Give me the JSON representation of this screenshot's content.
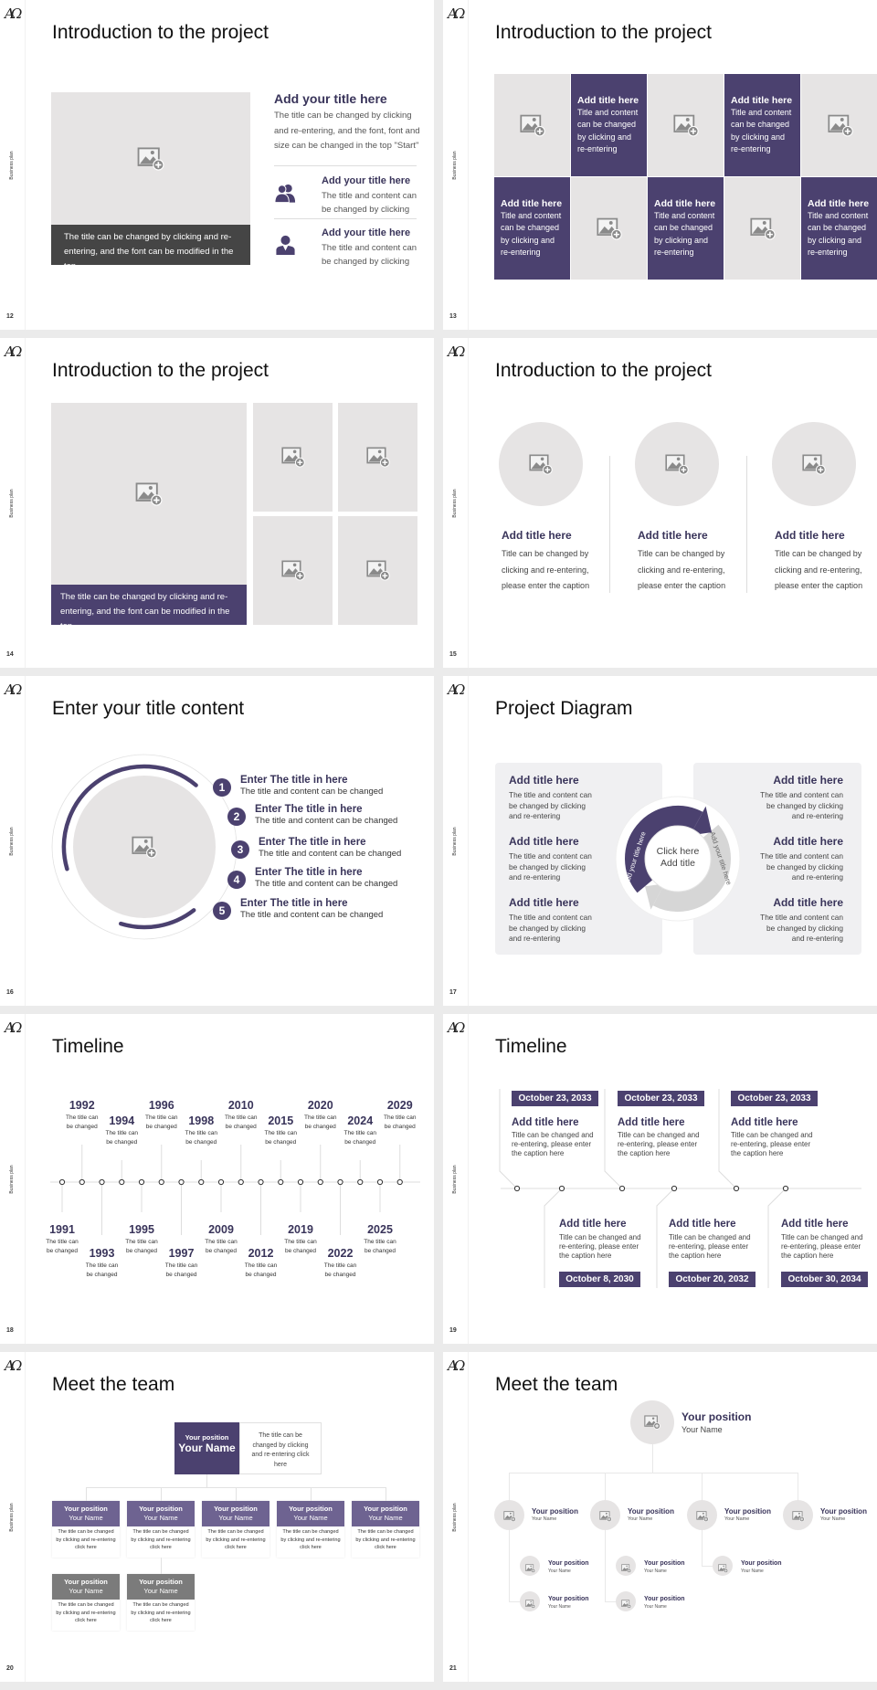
{
  "deck": {
    "logo": "AΩ",
    "side_label": "Business plan",
    "colors": {
      "purple": "#4b416f",
      "purple_light": "#6e6391",
      "placeholder": "#e6e4e4",
      "heading": "#39345a",
      "gray_header": "#7b7b7b",
      "caption_dark": "#454545",
      "panel": "#f0f0f2",
      "ring_gray": "#d6d6d6"
    }
  },
  "s12": {
    "page": "12",
    "title": "Introduction to the project",
    "image_caption": "The title can be changed by clicking and re-entering, and the font can be modified in the top",
    "main_title": "Add your title here",
    "main_text": "The title can be changed by clicking and re-entering, and the font, font and size can be changed in the top \"Start\"",
    "items": [
      {
        "icon": "users-icon",
        "title": "Add your title here",
        "text": "The title and content can be changed by clicking"
      },
      {
        "icon": "user-icon",
        "title": "Add your title here",
        "text": "The title and content can be changed by clicking"
      }
    ]
  },
  "s13": {
    "page": "13",
    "title": "Introduction to the project",
    "cells": [
      {
        "type": "image"
      },
      {
        "type": "text",
        "title": "Add title here",
        "text": "Title and content can be changed by clicking and re-entering"
      },
      {
        "type": "image"
      },
      {
        "type": "text",
        "title": "Add title here",
        "text": "Title and content can be changed by clicking and re-entering"
      },
      {
        "type": "image"
      },
      {
        "type": "text",
        "title": "Add title here",
        "text": "Title and content can be changed by clicking and re-entering"
      },
      {
        "type": "image"
      },
      {
        "type": "text",
        "title": "Add title here",
        "text": "Title and content can be changed by clicking and re-entering"
      },
      {
        "type": "image"
      },
      {
        "type": "text",
        "title": "Add title here",
        "text": "Title and content can be changed by clicking and re-entering"
      }
    ]
  },
  "s14": {
    "page": "14",
    "title": "Introduction to the project",
    "image_caption": "The title can be changed by clicking and re-entering, and the font can be modified in the top"
  },
  "s15": {
    "page": "15",
    "title": "Introduction to the project",
    "items": [
      {
        "title": "Add title here",
        "text": "Title can be changed by clicking and re-entering, please enter the caption"
      },
      {
        "title": "Add title here",
        "text": "Title can be changed by clicking and re-entering, please enter the caption"
      },
      {
        "title": "Add title here",
        "text": "Title can be changed by clicking and re-entering, please enter the caption"
      }
    ]
  },
  "s16": {
    "page": "16",
    "title": "Enter your title content",
    "items": [
      {
        "num": "1",
        "title": "Enter The title in here",
        "text": "The title and content can be changed"
      },
      {
        "num": "2",
        "title": "Enter The title in here",
        "text": "The title and content can be changed"
      },
      {
        "num": "3",
        "title": "Enter The title in here",
        "text": "The title and content can be changed"
      },
      {
        "num": "4",
        "title": "Enter The title in here",
        "text": "The title and content can be changed"
      },
      {
        "num": "5",
        "title": "Enter The title in here",
        "text": "The title and content can be changed"
      }
    ]
  },
  "s17": {
    "page": "17",
    "title": "Project Diagram",
    "center_line1": "Click here",
    "center_line2": "Add title",
    "arrow_left_label": "Add your title here",
    "arrow_right_label": "Add your title here",
    "left": [
      {
        "title": "Add title here",
        "text": "The title and content can be changed by clicking and re-entering"
      },
      {
        "title": "Add title here",
        "text": "The title and content can be changed by clicking and re-entering"
      },
      {
        "title": "Add title here",
        "text": "The title and content can be changed by clicking and re-entering"
      }
    ],
    "right": [
      {
        "title": "Add title here",
        "text": "The title and content can be changed by clicking and re-entering"
      },
      {
        "title": "Add title here",
        "text": "The title and content can be changed by clicking and re-entering"
      },
      {
        "title": "Add title here",
        "text": "The title and content can be changed by clicking and re-entering"
      }
    ]
  },
  "s18": {
    "page": "18",
    "title": "Timeline",
    "events": [
      {
        "year": "1991",
        "text": "The title can be changed"
      },
      {
        "year": "1992",
        "text": "The title can be changed"
      },
      {
        "year": "1993",
        "text": "The title can be changed"
      },
      {
        "year": "1994",
        "text": "The title can be changed"
      },
      {
        "year": "1995",
        "text": "The title can be changed"
      },
      {
        "year": "1996",
        "text": "The title can be changed"
      },
      {
        "year": "1997",
        "text": "The title can be changed"
      },
      {
        "year": "1998",
        "text": "The title can be changed"
      },
      {
        "year": "2009",
        "text": "The title can be changed"
      },
      {
        "year": "2010",
        "text": "The title can be changed"
      },
      {
        "year": "2012",
        "text": "The title can be changed"
      },
      {
        "year": "2015",
        "text": "The title can be changed"
      },
      {
        "year": "2019",
        "text": "The title can be changed"
      },
      {
        "year": "2020",
        "text": "The title can be changed"
      },
      {
        "year": "2022",
        "text": "The title can be changed"
      },
      {
        "year": "2024",
        "text": "The title can be changed"
      },
      {
        "year": "2025",
        "text": "The title can be changed"
      },
      {
        "year": "2029",
        "text": "The title can be changed"
      }
    ]
  },
  "s19": {
    "page": "19",
    "title": "Timeline",
    "events": [
      {
        "date": "October 23, 2033",
        "title": "Add title here",
        "text": "Title can be changed and re-entering, please enter the caption here"
      },
      {
        "date": "October 8, 2030",
        "title": "Add title here",
        "text": "Title can be changed and re-entering, please enter the caption here"
      },
      {
        "date": "October 23, 2033",
        "title": "Add title here",
        "text": "Title can be changed and re-entering, please enter the caption here"
      },
      {
        "date": "October 20, 2032",
        "title": "Add title here",
        "text": "Title can be changed and re-entering, please enter the caption here"
      },
      {
        "date": "October 23, 2033",
        "title": "Add title here",
        "text": "Title can be changed and re-entering, please enter the caption here"
      },
      {
        "date": "October 30, 2034",
        "title": "Add title here",
        "text": "Title can be changed and re-entering, please enter the caption here"
      }
    ]
  },
  "s20": {
    "page": "20",
    "title": "Meet the team",
    "lead": {
      "position": "Your position",
      "name": "Your Name",
      "text": "The title can be changed by clicking and re-entering click here"
    },
    "members": [
      {
        "position": "Your position",
        "name": "Your Name",
        "text": "The title can be changed by clicking and re-entering click here"
      },
      {
        "position": "Your position",
        "name": "Your Name",
        "text": "The title can be changed by clicking and re-entering click here"
      },
      {
        "position": "Your position",
        "name": "Your Name",
        "text": "The title can be changed by clicking and re-entering click here"
      },
      {
        "position": "Your position",
        "name": "Your Name",
        "text": "The title can be changed by clicking and re-entering click here"
      },
      {
        "position": "Your position",
        "name": "Your Name",
        "text": "The title can be changed by clicking and re-entering click here"
      },
      {
        "position": "Your position",
        "name": "Your Name",
        "text": "The title can be changed by clicking and re-entering click here"
      },
      {
        "position": "Your position",
        "name": "Your Name",
        "text": "The title can be changed by clicking and re-entering click here"
      }
    ]
  },
  "s21": {
    "page": "21",
    "title": "Meet the team",
    "lead": {
      "position": "Your position",
      "name": "Your Name"
    },
    "level2": [
      {
        "position": "Your position",
        "name": "Your Name"
      },
      {
        "position": "Your position",
        "name": "Your Name"
      },
      {
        "position": "Your position",
        "name": "Your Name"
      },
      {
        "position": "Your position",
        "name": "Your Name"
      }
    ],
    "level3": [
      {
        "position": "Your position",
        "name": "Your Name"
      },
      {
        "position": "Your position",
        "name": "Your Name"
      },
      {
        "position": "Your position",
        "name": "Your Name"
      },
      {
        "position": "Your position",
        "name": "Your Name"
      },
      {
        "position": "Your position",
        "name": "Your Name"
      }
    ]
  }
}
